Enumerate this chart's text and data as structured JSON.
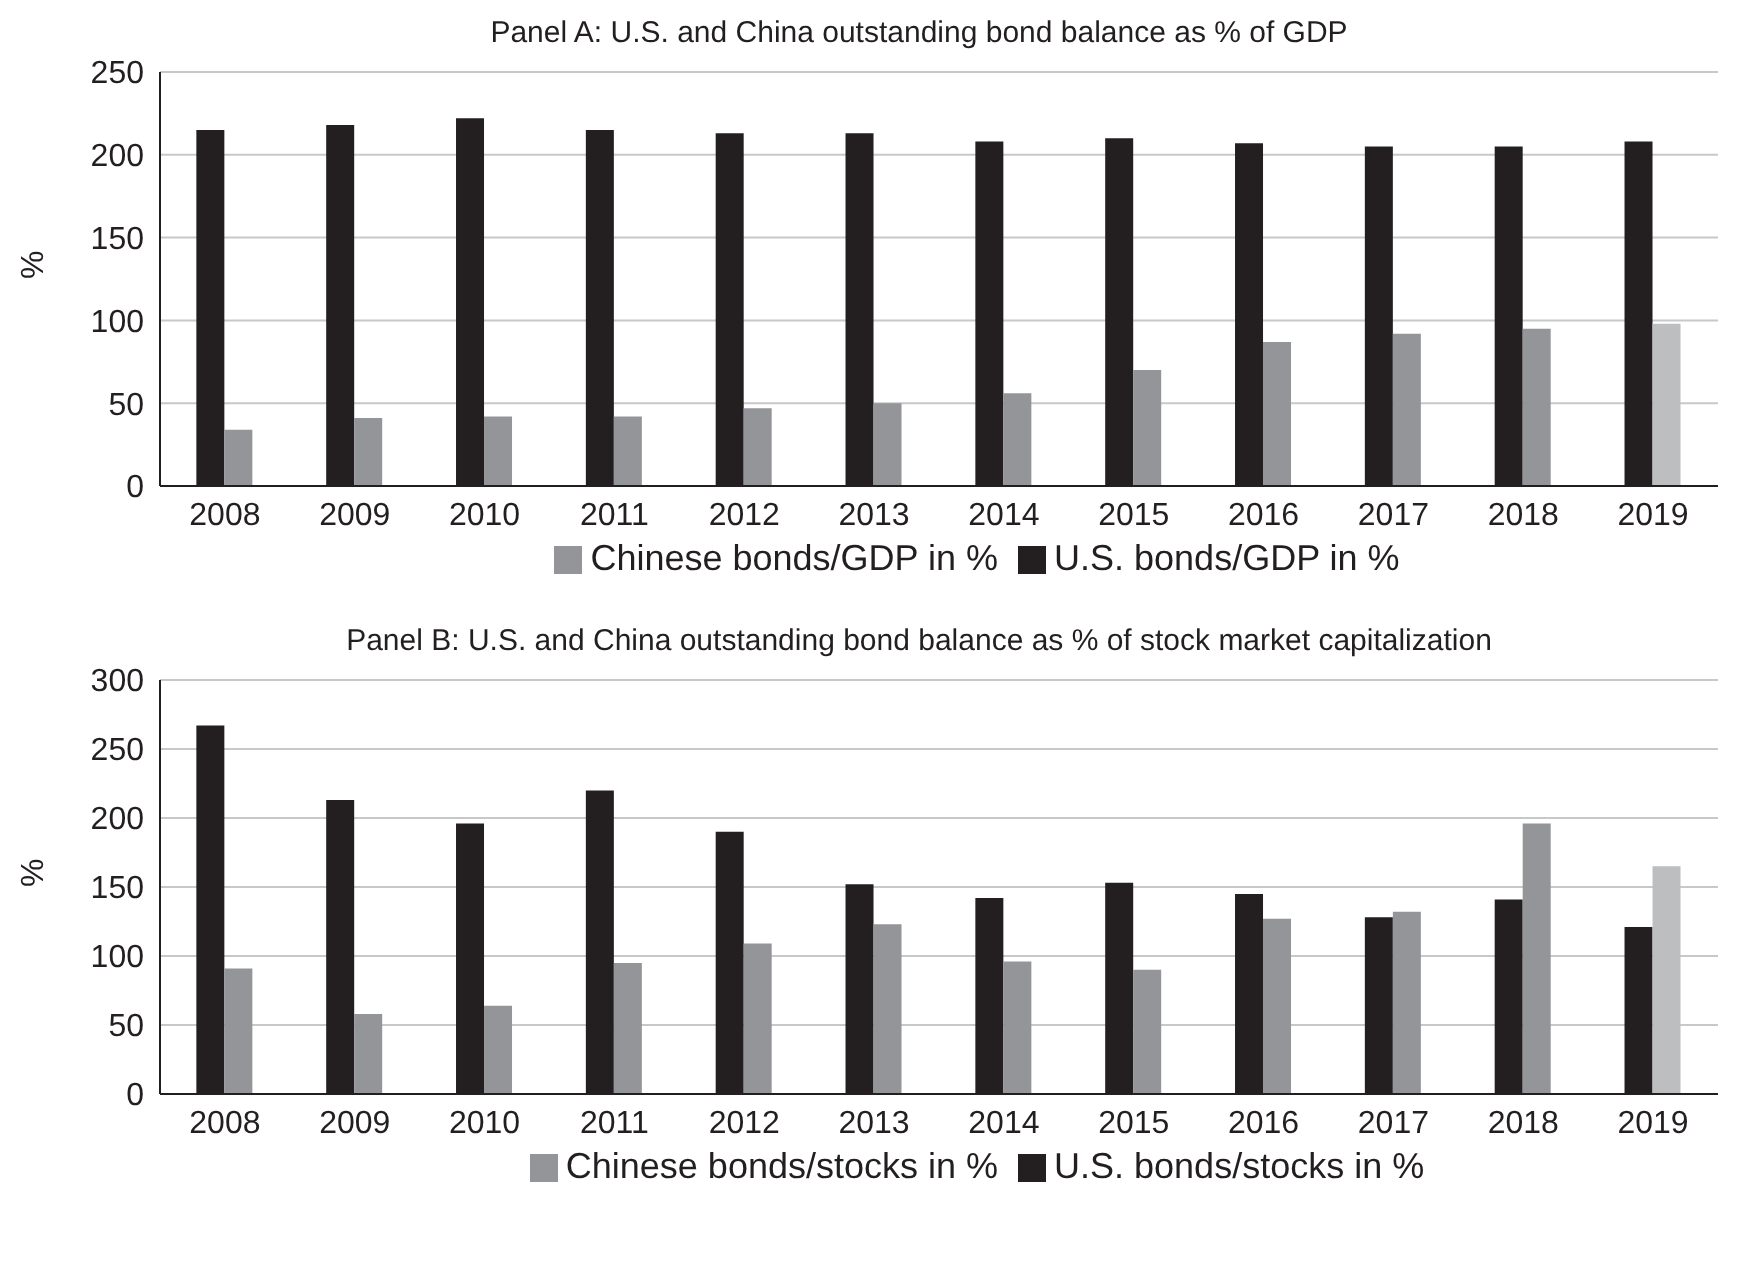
{
  "chart_data": [
    {
      "type": "bar",
      "title": "Panel A: U.S. and China outstanding bond balance as % of GDP",
      "ylabel": "%",
      "categories": [
        "2008",
        "2009",
        "2010",
        "2011",
        "2012",
        "2013",
        "2014",
        "2015",
        "2016",
        "2017",
        "2018",
        "2019"
      ],
      "series": [
        {
          "name": "U.S. bonds/GDP in %",
          "color": "#231f20",
          "values": [
            215,
            218,
            222,
            215,
            213,
            213,
            208,
            210,
            207,
            205,
            205,
            208
          ]
        },
        {
          "name": "Chinese bonds/GDP in %",
          "color": "#939598",
          "colors": [
            "#939598",
            "#939598",
            "#939598",
            "#939598",
            "#939598",
            "#939598",
            "#939598",
            "#939598",
            "#939598",
            "#939598",
            "#939598",
            "#bcbec0"
          ],
          "values": [
            34,
            41,
            42,
            42,
            47,
            50,
            56,
            70,
            87,
            92,
            95,
            98
          ]
        }
      ],
      "ylim": [
        0,
        250
      ],
      "yticks": [
        0,
        50,
        100,
        150,
        200,
        250
      ],
      "grid": "y",
      "legend": "bottom"
    },
    {
      "type": "bar",
      "title": "Panel B: U.S. and China outstanding bond balance as % of stock market capitalization",
      "ylabel": "%",
      "categories": [
        "2008",
        "2009",
        "2010",
        "2011",
        "2012",
        "2013",
        "2014",
        "2015",
        "2016",
        "2017",
        "2018",
        "2019"
      ],
      "series": [
        {
          "name": "U.S. bonds/stocks in %",
          "color": "#231f20",
          "values": [
            267,
            213,
            196,
            220,
            190,
            152,
            142,
            153,
            145,
            128,
            141,
            121
          ]
        },
        {
          "name": "Chinese bonds/stocks in %",
          "color": "#939598",
          "colors": [
            "#939598",
            "#939598",
            "#939598",
            "#939598",
            "#939598",
            "#939598",
            "#939598",
            "#939598",
            "#939598",
            "#939598",
            "#939598",
            "#bcbec0"
          ],
          "values": [
            91,
            58,
            64,
            95,
            109,
            123,
            96,
            90,
            127,
            132,
            196,
            165
          ]
        }
      ],
      "ylim": [
        0,
        300
      ],
      "yticks": [
        0,
        50,
        100,
        150,
        200,
        250,
        300
      ],
      "grid": "y",
      "legend": "bottom"
    }
  ]
}
